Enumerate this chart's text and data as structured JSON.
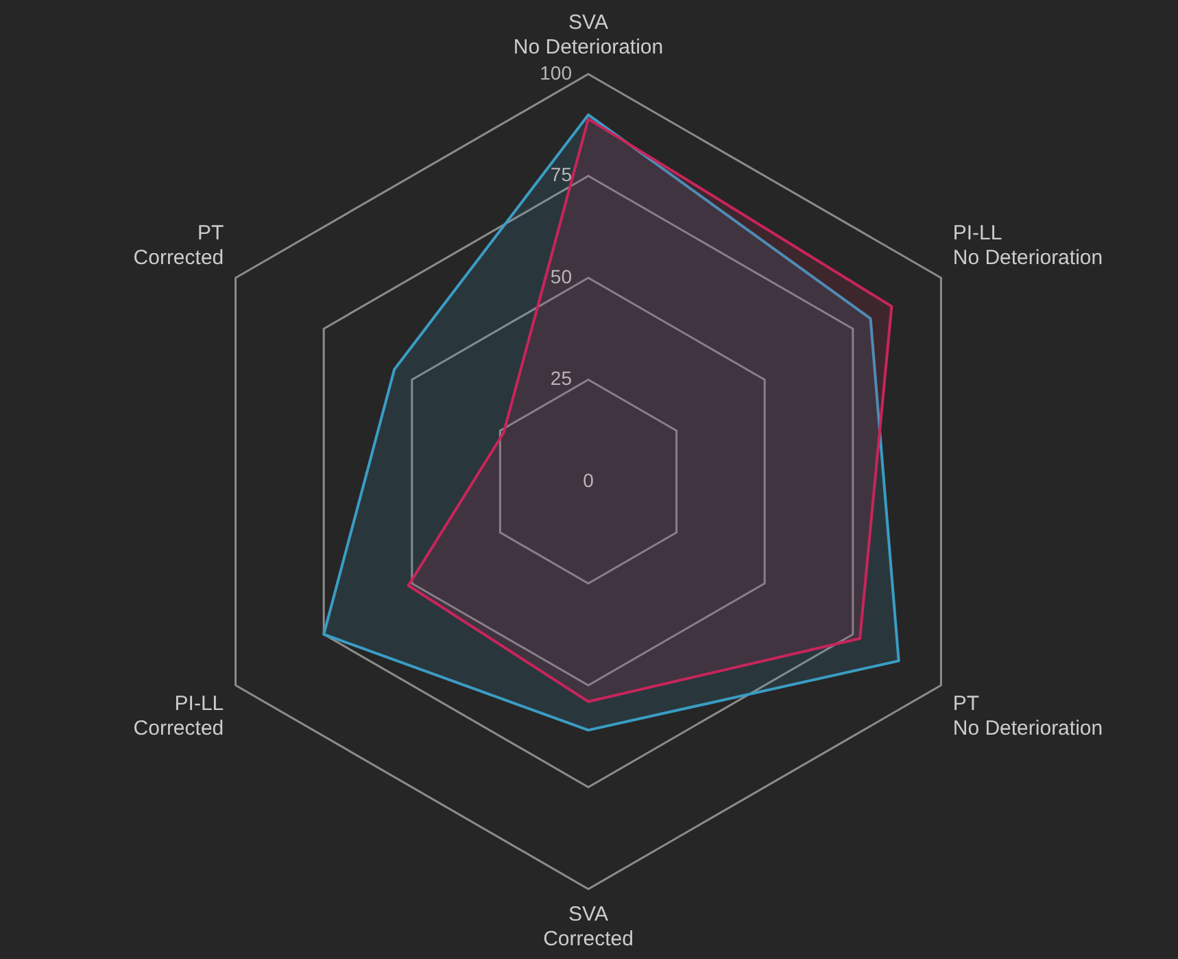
{
  "chart_data": {
    "type": "radar",
    "categories": [
      "SVA\nNo Deterioration",
      "PI-LL\nNo Deterioration",
      "PT\nNo Deterioration",
      "SVA\nCorrected",
      "PI-LL\nCorrected",
      "PT\nCorrected"
    ],
    "series": [
      {
        "color": "#c8255a",
        "values": [
          89,
          86,
          77,
          54,
          51,
          24
        ]
      },
      {
        "color": "#3a9dc4",
        "values": [
          90,
          80,
          88,
          61,
          75,
          55
        ]
      }
    ],
    "ylim": [
      0,
      100
    ],
    "yticks": [
      0,
      25,
      50,
      75,
      100
    ],
    "grid": true,
    "legend": false,
    "marker": "none"
  }
}
